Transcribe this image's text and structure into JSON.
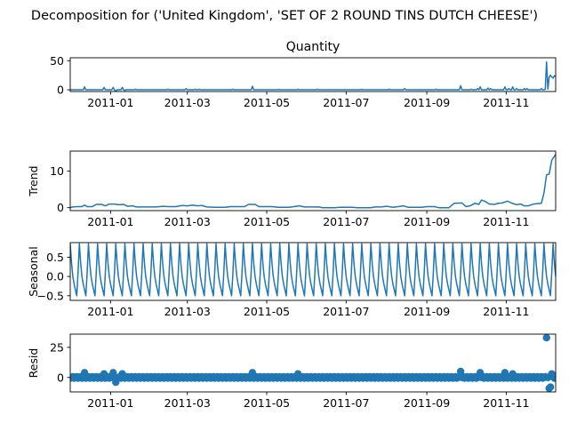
{
  "suptitle": "Decomposition for ('United Kingdom', 'SET OF 2 ROUND TINS DUTCH CHEESE')",
  "chart_data": {
    "type": "line",
    "title": "Decomposition for ('United Kingdom', 'SET OF 2 ROUND TINS DUTCH CHEESE')",
    "series_color": "#1f77b4",
    "x_range": [
      "2010-12-01",
      "2011-12-09"
    ],
    "x_tick_labels": [
      "2011-01",
      "2011-03",
      "2011-05",
      "2011-07",
      "2011-09",
      "2011-11"
    ],
    "panels": [
      {
        "key": "observed",
        "type": "line",
        "title": "Quantity",
        "ylabel": "",
        "ylim": [
          -3,
          55
        ],
        "yticks": [
          0,
          50
        ],
        "ytick_labels": [
          "0",
          "50"
        ],
        "spikes": [
          [
            "2010-12-12",
            5
          ],
          [
            "2010-12-27",
            4
          ],
          [
            "2011-01-03",
            4
          ],
          [
            "2011-01-05",
            -3
          ],
          [
            "2011-01-10",
            4
          ],
          [
            "2011-01-12",
            -1
          ],
          [
            "2011-01-20",
            1
          ],
          [
            "2011-02-14",
            1
          ],
          [
            "2011-02-28",
            2
          ],
          [
            "2011-03-07",
            1
          ],
          [
            "2011-03-10",
            1
          ],
          [
            "2011-04-05",
            1
          ],
          [
            "2011-04-20",
            6
          ],
          [
            "2011-05-10",
            1
          ],
          [
            "2011-05-25",
            1
          ],
          [
            "2011-06-09",
            1
          ],
          [
            "2011-07-13",
            1
          ],
          [
            "2011-08-03",
            1
          ],
          [
            "2011-08-15",
            2
          ],
          [
            "2011-09-08",
            1
          ],
          [
            "2011-09-27",
            7
          ],
          [
            "2011-10-05",
            1
          ],
          [
            "2011-10-10",
            2
          ],
          [
            "2011-10-12",
            5
          ],
          [
            "2011-10-18",
            3
          ],
          [
            "2011-10-20",
            2
          ],
          [
            "2011-10-31",
            5
          ],
          [
            "2011-11-03",
            2
          ],
          [
            "2011-11-06",
            5
          ],
          [
            "2011-11-09",
            2
          ],
          [
            "2011-11-15",
            2
          ],
          [
            "2011-11-17",
            2
          ],
          [
            "2011-11-28",
            2
          ]
        ],
        "tail": [
          [
            "2011-12-01",
            1
          ],
          [
            "2011-12-02",
            48
          ],
          [
            "2011-12-03",
            1
          ],
          [
            "2011-12-04",
            22
          ],
          [
            "2011-12-05",
            25
          ],
          [
            "2011-12-06",
            22
          ],
          [
            "2011-12-07",
            20
          ],
          [
            "2011-12-08",
            24
          ],
          [
            "2011-12-09",
            23
          ]
        ]
      },
      {
        "key": "trend",
        "type": "line",
        "title": "",
        "ylabel": "Trend",
        "ylim": [
          -0.8,
          15.5
        ],
        "yticks": [
          0,
          10
        ],
        "ytick_labels": [
          "0",
          "10"
        ],
        "points": [
          [
            "2010-12-01",
            0.0
          ],
          [
            "2010-12-03",
            0.2
          ],
          [
            "2010-12-07",
            0.3
          ],
          [
            "2010-12-10",
            0.3
          ],
          [
            "2010-12-12",
            0.7
          ],
          [
            "2010-12-14",
            0.3
          ],
          [
            "2010-12-18",
            0.3
          ],
          [
            "2010-12-21",
            0.9
          ],
          [
            "2010-12-25",
            0.9
          ],
          [
            "2010-12-28",
            0.5
          ],
          [
            "2010-12-31",
            1.0
          ],
          [
            "2011-01-04",
            1.0
          ],
          [
            "2011-01-07",
            0.8
          ],
          [
            "2011-01-11",
            0.9
          ],
          [
            "2011-01-14",
            0.4
          ],
          [
            "2011-01-18",
            0.5
          ],
          [
            "2011-01-21",
            0.2
          ],
          [
            "2011-01-30",
            0.2
          ],
          [
            "2011-02-05",
            0.2
          ],
          [
            "2011-02-10",
            0.4
          ],
          [
            "2011-02-14",
            0.3
          ],
          [
            "2011-02-20",
            0.3
          ],
          [
            "2011-02-25",
            0.6
          ],
          [
            "2011-03-01",
            0.5
          ],
          [
            "2011-03-05",
            0.7
          ],
          [
            "2011-03-09",
            0.5
          ],
          [
            "2011-03-12",
            0.6
          ],
          [
            "2011-03-16",
            0.2
          ],
          [
            "2011-03-22",
            0.1
          ],
          [
            "2011-03-30",
            0.1
          ],
          [
            "2011-04-03",
            0.3
          ],
          [
            "2011-04-14",
            0.3
          ],
          [
            "2011-04-17",
            0.9
          ],
          [
            "2011-04-22",
            0.9
          ],
          [
            "2011-04-25",
            0.3
          ],
          [
            "2011-05-05",
            0.3
          ],
          [
            "2011-05-10",
            0.1
          ],
          [
            "2011-05-18",
            0.1
          ],
          [
            "2011-05-22",
            0.3
          ],
          [
            "2011-05-26",
            0.5
          ],
          [
            "2011-05-30",
            0.2
          ],
          [
            "2011-06-10",
            0.2
          ],
          [
            "2011-06-13",
            0.0
          ],
          [
            "2011-06-22",
            0.0
          ],
          [
            "2011-06-26",
            0.1
          ],
          [
            "2011-07-05",
            0.1
          ],
          [
            "2011-07-10",
            0.0
          ],
          [
            "2011-07-20",
            0.0
          ],
          [
            "2011-07-23",
            0.2
          ],
          [
            "2011-07-28",
            0.2
          ],
          [
            "2011-08-01",
            0.4
          ],
          [
            "2011-08-06",
            0.1
          ],
          [
            "2011-08-10",
            0.3
          ],
          [
            "2011-08-14",
            0.5
          ],
          [
            "2011-08-18",
            0.1
          ],
          [
            "2011-08-28",
            0.1
          ],
          [
            "2011-09-01",
            0.3
          ],
          [
            "2011-09-07",
            0.3
          ],
          [
            "2011-09-10",
            0.0
          ],
          [
            "2011-09-18",
            0.0
          ],
          [
            "2011-09-22",
            1.2
          ],
          [
            "2011-09-28",
            1.3
          ],
          [
            "2011-10-01",
            0.3
          ],
          [
            "2011-10-04",
            0.5
          ],
          [
            "2011-10-08",
            1.2
          ],
          [
            "2011-10-11",
            0.9
          ],
          [
            "2011-10-13",
            2.1
          ],
          [
            "2011-10-16",
            1.7
          ],
          [
            "2011-10-19",
            1.0
          ],
          [
            "2011-10-23",
            0.9
          ],
          [
            "2011-10-26",
            1.2
          ],
          [
            "2011-10-29",
            1.3
          ],
          [
            "2011-11-02",
            1.8
          ],
          [
            "2011-11-05",
            1.3
          ],
          [
            "2011-11-09",
            0.8
          ],
          [
            "2011-11-12",
            1.0
          ],
          [
            "2011-11-15",
            0.5
          ],
          [
            "2011-11-18",
            0.5
          ],
          [
            "2011-11-22",
            1.0
          ],
          [
            "2011-11-28",
            1.2
          ],
          [
            "2011-11-30",
            4.0
          ],
          [
            "2011-12-02",
            9.0
          ],
          [
            "2011-12-04",
            9.2
          ],
          [
            "2011-12-06",
            13.0
          ],
          [
            "2011-12-09",
            14.6
          ]
        ]
      },
      {
        "key": "seasonal",
        "type": "line",
        "title": "",
        "ylabel": "Seasonal",
        "ylim": [
          -0.62,
          0.88
        ],
        "yticks": [
          0.5,
          0.0,
          -0.5
        ],
        "ytick_labels": [
          "0.5",
          "0.0",
          "−0.5"
        ],
        "period_days": 7,
        "cycle": [
          0.85,
          0.35,
          0.0,
          -0.2,
          -0.35,
          -0.5,
          0.1
        ]
      },
      {
        "key": "resid",
        "type": "scatter",
        "title": "",
        "ylabel": "Resid",
        "ylim": [
          -12,
          36
        ],
        "yticks": [
          0,
          25
        ],
        "ytick_labels": [
          "0",
          "25"
        ],
        "outliers": [
          [
            "2010-12-12",
            4
          ],
          [
            "2010-12-27",
            3
          ],
          [
            "2011-01-03",
            4
          ],
          [
            "2011-01-05",
            -4
          ],
          [
            "2011-01-10",
            3
          ],
          [
            "2011-04-20",
            4
          ],
          [
            "2011-05-25",
            3
          ],
          [
            "2011-09-27",
            5
          ],
          [
            "2011-10-12",
            4
          ],
          [
            "2011-10-31",
            4
          ],
          [
            "2011-11-06",
            3
          ],
          [
            "2011-12-02",
            33
          ],
          [
            "2011-12-04",
            -9
          ],
          [
            "2011-12-05",
            -8
          ],
          [
            "2011-12-06",
            3
          ]
        ]
      }
    ]
  }
}
